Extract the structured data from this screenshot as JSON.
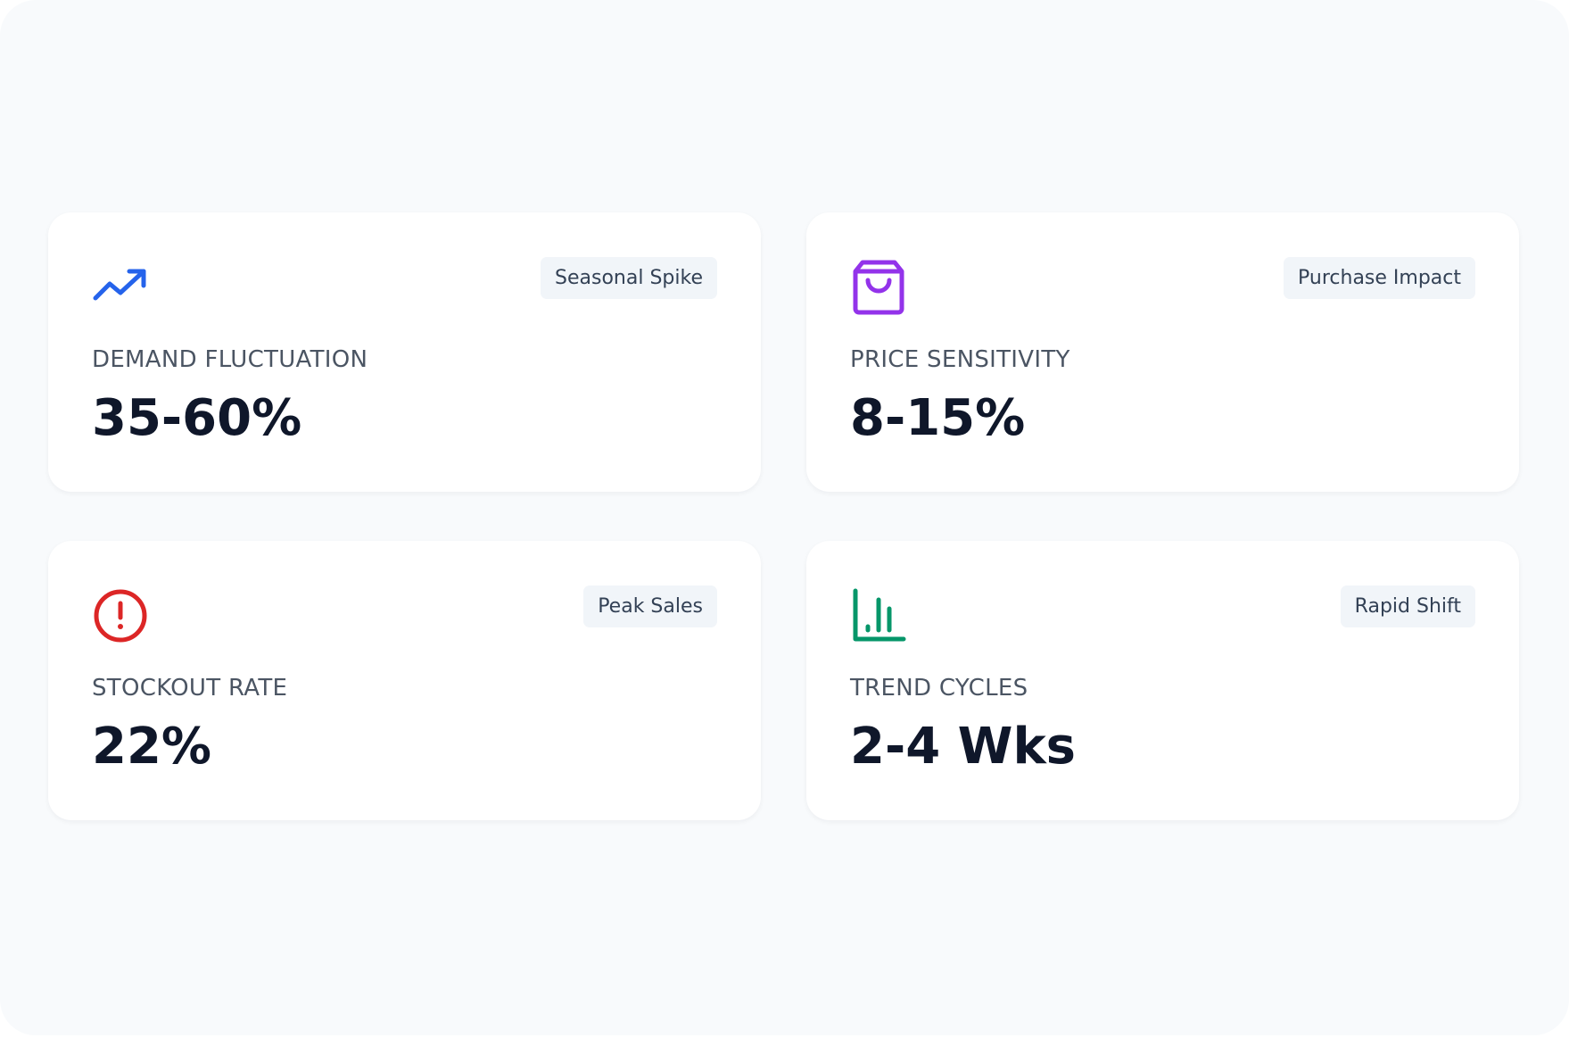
{
  "cards": [
    {
      "badge": "Seasonal Spike",
      "label": "DEMAND FLUCTUATION",
      "value": "35-60%"
    },
    {
      "badge": "Purchase Impact",
      "label": "PRICE SENSITIVITY",
      "value": "8-15%"
    },
    {
      "badge": "Peak Sales",
      "label": "STOCKOUT RATE",
      "value": "22%"
    },
    {
      "badge": "Rapid Shift",
      "label": "TREND CYCLES",
      "value": "2-4 Wks"
    }
  ]
}
